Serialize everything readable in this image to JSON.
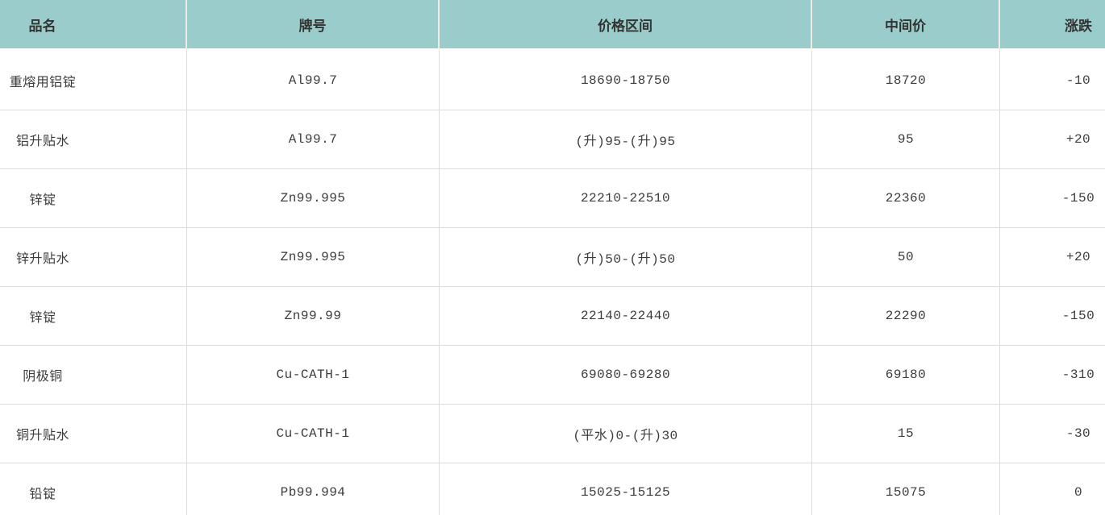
{
  "chart_data": {
    "type": "table",
    "columns": [
      "品名",
      "牌号",
      "价格区间",
      "中间价",
      "涨跌"
    ],
    "rows": [
      [
        "重熔用铝锭",
        "Al99.7",
        "18690-18750",
        "18720",
        "-10"
      ],
      [
        "铝升贴水",
        "Al99.7",
        "(升)95-(升)95",
        "95",
        "+20"
      ],
      [
        "锌锭",
        "Zn99.995",
        "22210-22510",
        "22360",
        "-150"
      ],
      [
        "锌升贴水",
        "Zn99.995",
        "(升)50-(升)50",
        "50",
        "+20"
      ],
      [
        "锌锭",
        "Zn99.99",
        "22140-22440",
        "22290",
        "-150"
      ],
      [
        "阴极铜",
        "Cu-CATH-1",
        "69080-69280",
        "69180",
        "-310"
      ],
      [
        "铜升贴水",
        "Cu-CATH-1",
        "(平水)0-(升)30",
        "15",
        "-30"
      ],
      [
        "铅锭",
        "Pb99.994",
        "15025-15125",
        "15075",
        "0"
      ]
    ],
    "layout_hints": {
      "header_position": "top",
      "grid": "on",
      "cell_alignment": "center",
      "cropped_edges": [
        "left",
        "right"
      ]
    }
  },
  "colors": {
    "header_bg": "#99ccca",
    "header_divider": "#f0ebe0",
    "grid_line": "#dcdcdc",
    "text": "#3c3c3c"
  }
}
